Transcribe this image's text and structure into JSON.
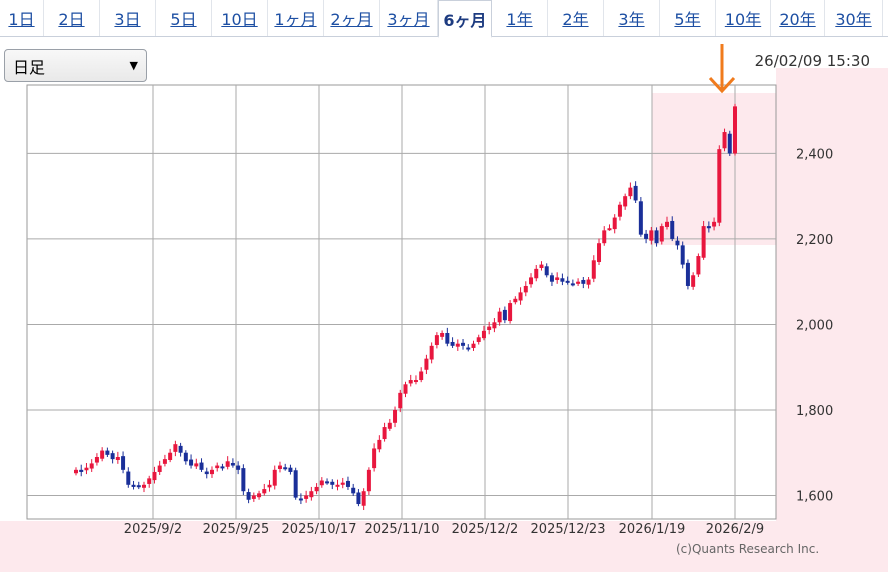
{
  "tabs": [
    {
      "label": "1日"
    },
    {
      "label": "2日"
    },
    {
      "label": "3日"
    },
    {
      "label": "5日"
    },
    {
      "label": "10日"
    },
    {
      "label": "1ヶ月"
    },
    {
      "label": "2ヶ月"
    },
    {
      "label": "3ヶ月"
    },
    {
      "label": "6ヶ月"
    },
    {
      "label": "1年"
    },
    {
      "label": "2年"
    },
    {
      "label": "3年"
    },
    {
      "label": "5年"
    },
    {
      "label": "10年"
    },
    {
      "label": "20年"
    },
    {
      "label": "30年"
    }
  ],
  "active_tab": "6ヶ月",
  "interval_select": {
    "value": "日足"
  },
  "timestamp": "26/02/09 15:30",
  "copyright": "(c)Quants Research Inc.",
  "colors": {
    "up": "#e8173e",
    "down": "#1a2f99",
    "grid": "#aaaaaa",
    "highlight": "#fde9ed",
    "arrow": "#f07b1d",
    "tab_link": "#1d4fa3"
  },
  "chart_data": {
    "type": "candlestick",
    "x_tick_labels": [
      "2025/9/2",
      "2025/9/25",
      "2025/10/17",
      "2025/11/10",
      "2025/12/2",
      "2025/12/23",
      "2026/1/19",
      "2026/2/9"
    ],
    "y_tick_labels": [
      "1,600",
      "1,800",
      "2,000",
      "2,200",
      "2,400"
    ],
    "ylim": [
      1545,
      2560
    ],
    "grid": true,
    "highlight_last_period": true,
    "last_candle": {
      "date": "2026/2/9",
      "close": 2510
    },
    "closes": [
      1660,
      1655,
      1665,
      1675,
      1690,
      1705,
      1695,
      1685,
      1690,
      1660,
      1625,
      1620,
      1620,
      1625,
      1640,
      1655,
      1670,
      1685,
      1700,
      1720,
      1700,
      1680,
      1670,
      1675,
      1660,
      1650,
      1660,
      1670,
      1665,
      1680,
      1670,
      1660,
      1610,
      1590,
      1600,
      1605,
      1615,
      1625,
      1660,
      1670,
      1665,
      1655,
      1595,
      1590,
      1600,
      1610,
      1620,
      1635,
      1630,
      1625,
      1625,
      1630,
      1620,
      1605,
      1580,
      1610,
      1660,
      1710,
      1730,
      1760,
      1770,
      1800,
      1840,
      1860,
      1870,
      1870,
      1890,
      1920,
      1950,
      1975,
      1980,
      1955,
      1950,
      1955,
      1950,
      1945,
      1955,
      1970,
      1985,
      1995,
      2005,
      2030,
      2010,
      2050,
      2060,
      2075,
      2090,
      2110,
      2130,
      2140,
      2115,
      2100,
      2110,
      2100,
      2100,
      2095,
      2100,
      2095,
      2105,
      2150,
      2190,
      2220,
      2225,
      2250,
      2280,
      2300,
      2320,
      2290,
      2210,
      2200,
      2220,
      2190,
      2230,
      2240,
      2200,
      2185,
      2140,
      2090,
      2115,
      2160,
      2230,
      2225,
      2240,
      2410,
      2450,
      2400,
      2510
    ],
    "highlight_from_index": 115
  }
}
